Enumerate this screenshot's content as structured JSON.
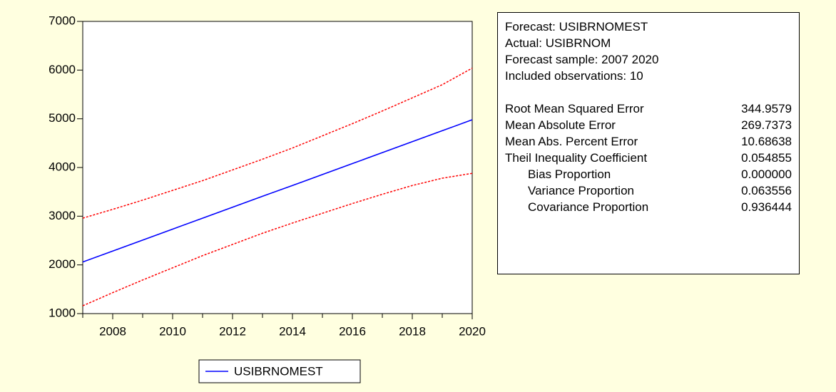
{
  "chart_data": {
    "type": "line",
    "x": [
      2007,
      2008,
      2009,
      2010,
      2011,
      2012,
      2013,
      2014,
      2015,
      2016,
      2017,
      2018,
      2019,
      2020
    ],
    "series": [
      {
        "name": "USIBRNOMEST",
        "color": "#0000ff",
        "dash": false,
        "values": [
          2060,
          2285,
          2510,
          2735,
          2960,
          3185,
          3410,
          3630,
          3855,
          4080,
          4305,
          4530,
          4755,
          4980
        ]
      },
      {
        "color": "#ff0000",
        "dash": true,
        "values": [
          2960,
          3140,
          3330,
          3530,
          3730,
          3950,
          4170,
          4400,
          4650,
          4900,
          5160,
          5430,
          5700,
          6040
        ]
      },
      {
        "color": "#ff0000",
        "dash": true,
        "values": [
          1160,
          1430,
          1690,
          1940,
          2190,
          2420,
          2650,
          2860,
          3060,
          3260,
          3450,
          3630,
          3780,
          3880
        ]
      }
    ],
    "xlim": [
      2007,
      2020
    ],
    "xticks": [
      2008,
      2010,
      2012,
      2014,
      2016,
      2018,
      2020
    ],
    "x_minor_ticks": [
      2007,
      2008,
      2009,
      2010,
      2011,
      2012,
      2013,
      2014,
      2015,
      2016,
      2017,
      2018,
      2019,
      2020
    ],
    "ylim": [
      1000,
      7000
    ],
    "yticks": [
      1000,
      2000,
      3000,
      4000,
      5000,
      6000,
      7000
    ],
    "grid": false,
    "legend": "bottom"
  },
  "forecast_summary": {
    "header": [
      "Forecast: USIBRNOMEST",
      "Actual: USIBRNOM",
      "Forecast sample: 2007 2020",
      "Included observations: 10"
    ],
    "rows": [
      [
        "Root Mean Squared Error",
        "344.9579"
      ],
      [
        "Mean Absolute Error",
        "269.7373"
      ],
      [
        "Mean Abs. Percent Error",
        "10.68638"
      ],
      [
        "Theil Inequality Coefficient",
        "0.054855"
      ],
      [
        "Bias Proportion",
        "0.000000"
      ],
      [
        "Variance Proportion",
        "0.063556"
      ],
      [
        "Covariance Proportion",
        "0.936444"
      ]
    ],
    "indented_from": 4
  }
}
